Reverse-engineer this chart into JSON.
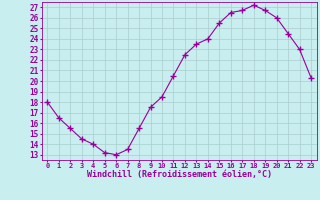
{
  "x": [
    0,
    1,
    2,
    3,
    4,
    5,
    6,
    7,
    8,
    9,
    10,
    11,
    12,
    13,
    14,
    15,
    16,
    17,
    18,
    19,
    20,
    21,
    22,
    23
  ],
  "y": [
    18.0,
    16.5,
    15.5,
    14.5,
    14.0,
    13.2,
    13.0,
    13.5,
    15.5,
    17.5,
    18.5,
    20.5,
    22.5,
    23.5,
    24.0,
    25.5,
    26.5,
    26.7,
    27.2,
    26.7,
    26.0,
    24.5,
    23.0,
    20.3
  ],
  "line_color": "#990099",
  "marker": "+",
  "marker_size": 4,
  "bg_color": "#c8eef0",
  "grid_color": "#aacccc",
  "xlabel": "Windchill (Refroidissement éolien,°C)",
  "ylabel_ticks": [
    13,
    14,
    15,
    16,
    17,
    18,
    19,
    20,
    21,
    22,
    23,
    24,
    25,
    26,
    27
  ],
  "xlim": [
    -0.5,
    23.5
  ],
  "ylim": [
    12.5,
    27.5
  ],
  "xticks": [
    0,
    1,
    2,
    3,
    4,
    5,
    6,
    7,
    8,
    9,
    10,
    11,
    12,
    13,
    14,
    15,
    16,
    17,
    18,
    19,
    20,
    21,
    22,
    23
  ],
  "xtick_labels": [
    "0",
    "1",
    "2",
    "3",
    "4",
    "5",
    "6",
    "7",
    "8",
    "9",
    "10",
    "11",
    "12",
    "13",
    "14",
    "15",
    "16",
    "17",
    "18",
    "19",
    "20",
    "21",
    "22",
    "23"
  ]
}
